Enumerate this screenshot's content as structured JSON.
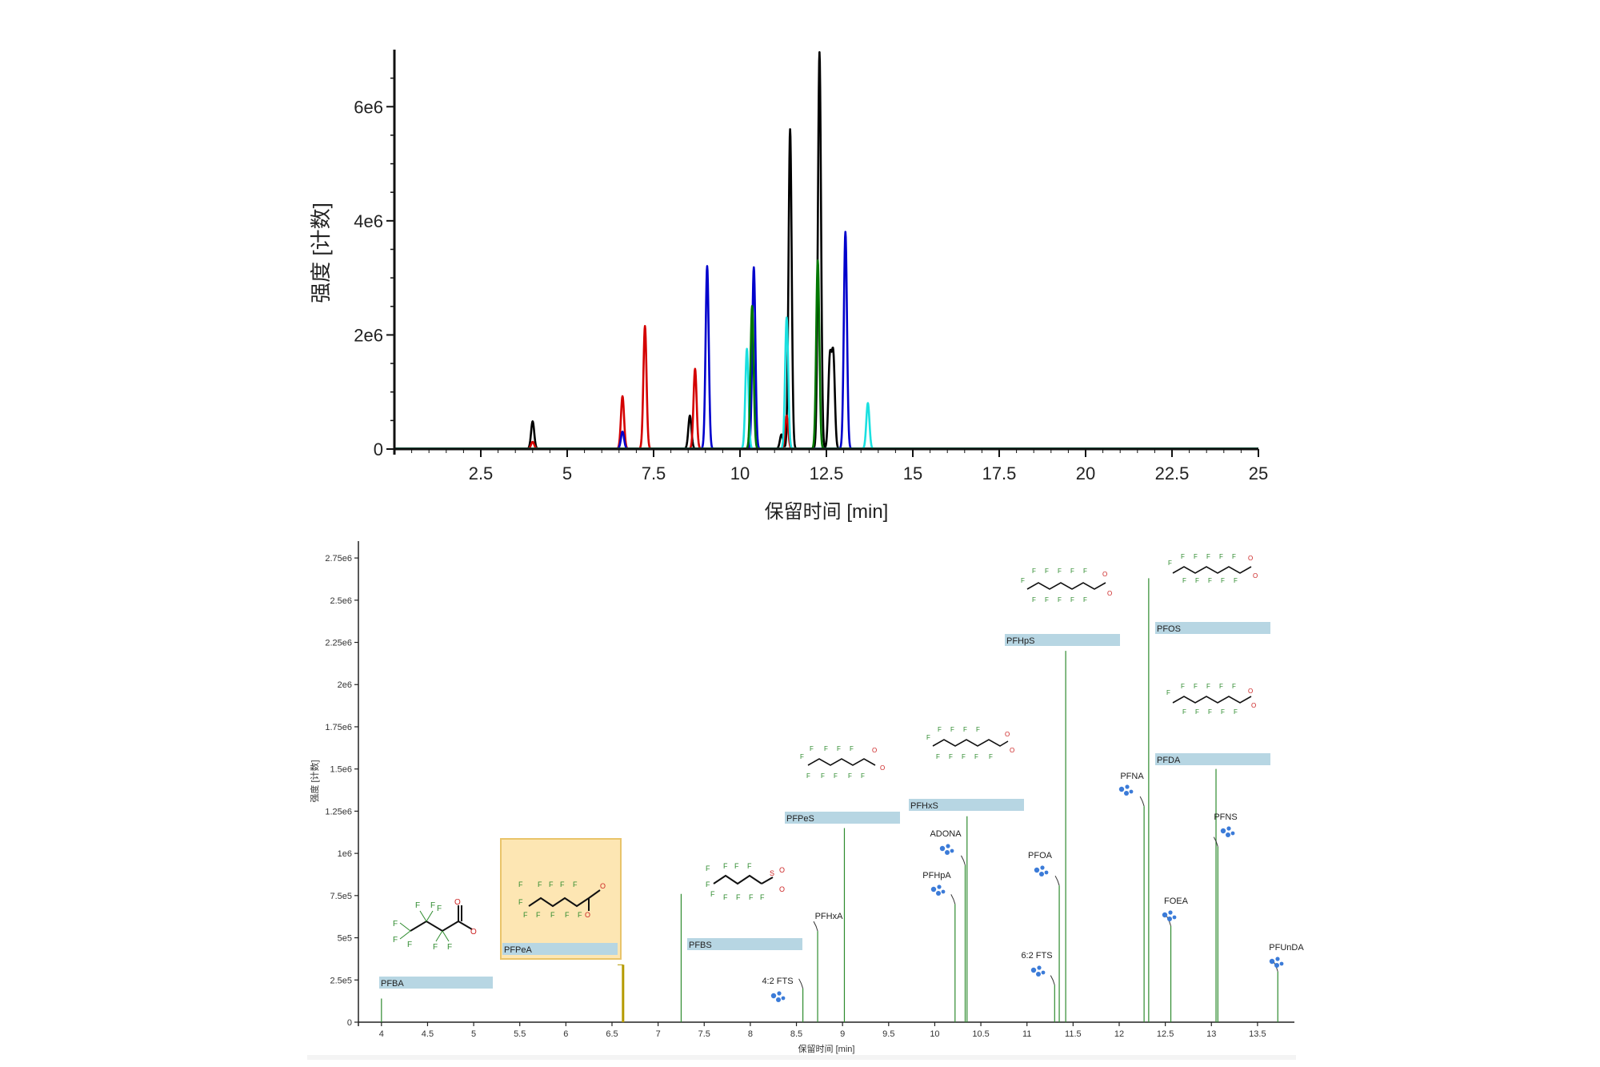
{
  "chart_data": [
    {
      "type": "line",
      "title": "",
      "xlabel": "保留时间 [min]",
      "ylabel": "强度 [计数]",
      "xlim": [
        0,
        25
      ],
      "ylim": [
        0,
        7000000
      ],
      "xticks": [
        2.5,
        5,
        7.5,
        10,
        12.5,
        15,
        17.5,
        20,
        22.5,
        25
      ],
      "xtick_labels": [
        "2.5",
        "5",
        "7.5",
        "10",
        "12.5",
        "15",
        "17.5",
        "20",
        "22.5",
        "25"
      ],
      "yticks": [
        0,
        2000000,
        4000000,
        6000000
      ],
      "ytick_labels": [
        "0",
        "2e6",
        "4e6",
        "6e6"
      ],
      "grid": false,
      "series": [
        {
          "name": "black",
          "color": "#000000",
          "peaks": [
            [
              4.0,
              480000
            ],
            [
              8.55,
              580000
            ],
            [
              11.2,
              250000
            ],
            [
              11.45,
              5600000
            ],
            [
              12.3,
              6950000
            ],
            [
              12.6,
              1550000
            ],
            [
              12.7,
              1600000
            ]
          ]
        },
        {
          "name": "red",
          "color": "#d40000",
          "peaks": [
            [
              4.0,
              120000
            ],
            [
              6.6,
              920000
            ],
            [
              7.25,
              2150000
            ],
            [
              8.7,
              1400000
            ],
            [
              11.35,
              580000
            ]
          ]
        },
        {
          "name": "blue",
          "color": "#0000cc",
          "peaks": [
            [
              6.6,
              300000
            ],
            [
              9.05,
              3200000
            ],
            [
              10.4,
              3180000
            ],
            [
              13.05,
              3800000
            ]
          ]
        },
        {
          "name": "cyan",
          "color": "#1ae0e0",
          "peaks": [
            [
              10.2,
              1750000
            ],
            [
              11.35,
              2300000
            ],
            [
              13.7,
              800000
            ]
          ]
        },
        {
          "name": "green",
          "color": "#007700",
          "peaks": [
            [
              10.35,
              2500000
            ],
            [
              12.25,
              3300000
            ]
          ]
        }
      ]
    },
    {
      "type": "bar",
      "title": "",
      "xlabel": "保留时间 [min]",
      "ylabel": "强度 [计数]",
      "xlim": [
        3.75,
        13.9
      ],
      "ylim": [
        0,
        2850000
      ],
      "xticks": [
        4,
        4.5,
        5,
        5.5,
        6,
        6.5,
        7,
        7.5,
        8,
        8.5,
        9,
        9.5,
        10,
        10.5,
        11,
        11.5,
        12,
        12.5,
        13,
        13.5
      ],
      "xtick_labels": [
        "4",
        "4.5",
        "5",
        "5.5",
        "6",
        "6.5",
        "7",
        "7.5",
        "8",
        "8.5",
        "9",
        "9.5",
        "10",
        "10.5",
        "11",
        "11.5",
        "12",
        "12.5",
        "13",
        "13.5"
      ],
      "yticks": [
        0,
        250000,
        500000,
        750000,
        1000000,
        1250000,
        1500000,
        1750000,
        2000000,
        2250000,
        2500000,
        2750000
      ],
      "ytick_labels": [
        "0",
        "2.5e5",
        "5e5",
        "7.5e5",
        "1e6",
        "1.25e6",
        "1.5e6",
        "1.75e6",
        "2e6",
        "2.25e6",
        "2.5e6",
        "2.75e6"
      ],
      "grid": false,
      "peaks": [
        {
          "x": 4.0,
          "value": 140000,
          "label": "PFBA",
          "style": "box",
          "structure": true
        },
        {
          "x": 6.62,
          "value": 340000,
          "label": "PFPeA",
          "style": "box",
          "structure": true,
          "highlighted": true
        },
        {
          "x": 7.25,
          "value": 760000,
          "label": "PFBS",
          "style": "box",
          "structure": true
        },
        {
          "x": 8.57,
          "value": 200000,
          "label": "4:2 FTS",
          "style": "text"
        },
        {
          "x": 8.73,
          "value": 540000,
          "label": "PFHxA",
          "style": "text"
        },
        {
          "x": 9.02,
          "value": 1150000,
          "label": "PFPeS",
          "style": "box",
          "structure": true
        },
        {
          "x": 10.22,
          "value": 700000,
          "label": "PFHpA",
          "style": "text"
        },
        {
          "x": 10.35,
          "value": 1220000,
          "label": "PFHxS",
          "style": "box",
          "structure": true
        },
        {
          "x": 10.33,
          "value": 930000,
          "label": "ADONA",
          "style": "text"
        },
        {
          "x": 11.3,
          "value": 220000,
          "label": "6:2 FTS",
          "style": "text"
        },
        {
          "x": 11.35,
          "value": 810000,
          "label": "PFOA",
          "style": "text"
        },
        {
          "x": 11.42,
          "value": 2200000,
          "label": "PFHpS",
          "style": "box",
          "structure": true
        },
        {
          "x": 12.27,
          "value": 1280000,
          "label": "PFNA",
          "style": "text"
        },
        {
          "x": 12.32,
          "value": 2630000,
          "label": "PFOS",
          "style": "box",
          "structure": true
        },
        {
          "x": 12.56,
          "value": 570000,
          "label": "FOEA",
          "style": "text"
        },
        {
          "x": 13.05,
          "value": 1500000,
          "label": "PFDA",
          "style": "box",
          "structure": true
        },
        {
          "x": 13.07,
          "value": 1040000,
          "label": "PFNS",
          "style": "text"
        },
        {
          "x": 13.72,
          "value": 300000,
          "label": "PFUnDA",
          "style": "text"
        }
      ]
    }
  ],
  "colors": {
    "axis": "#111111",
    "peak_line": "#2e8b2e",
    "label_box": "#b7d6e3",
    "highlight_fill": "#fde6b3",
    "highlight_border": "#e9c46a",
    "highlight_peak": "#b59a00",
    "cluster_icon": "#3b7bd8"
  }
}
